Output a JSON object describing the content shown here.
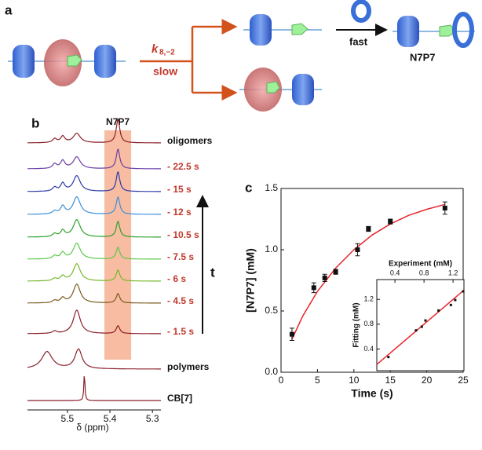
{
  "panel_a": {
    "label": "a",
    "rate_symbol": "k",
    "rate_subscript": "8,−2",
    "slow": "slow",
    "fast": "fast",
    "product": "N7P7"
  },
  "chart_data": [
    {
      "type": "spectra",
      "panel_label": "b",
      "highlight_label": "N7P7",
      "xlabel": "δ (ppm)",
      "xlim": [
        5.594,
        5.28
      ],
      "xticks": [
        5.5,
        5.4,
        5.3
      ],
      "traces": [
        {
          "name": "oligomers",
          "color": "#8b1f2a",
          "label_color": "#111111"
        },
        {
          "name": "- 22.5 s",
          "color": "#6a3fa6",
          "label_color": "#c0392b"
        },
        {
          "name": "- 15 s",
          "color": "#2b3aa8",
          "label_color": "#c0392b"
        },
        {
          "name": "- 12 s",
          "color": "#3b8fd8",
          "label_color": "#c0392b"
        },
        {
          "name": "- 10.5 s",
          "color": "#2ca02c",
          "label_color": "#c0392b"
        },
        {
          "name": "- 7.5 s",
          "color": "#5cc84a",
          "label_color": "#c0392b"
        },
        {
          "name": "- 6 s",
          "color": "#76b82a",
          "label_color": "#c0392b"
        },
        {
          "name": "- 4.5 s",
          "color": "#7a5a1e",
          "label_color": "#c0392b"
        },
        {
          "name": "- 1.5 s",
          "color": "#8b1f2a",
          "label_color": "#c0392b"
        },
        {
          "name": "polymers",
          "color": "#8b1f2a",
          "label_color": "#111111"
        },
        {
          "name": "CB[7]",
          "color": "#8b1f2a",
          "label_color": "#111111"
        }
      ],
      "arrow_label": "t"
    },
    {
      "type": "scatter",
      "panel_label": "c",
      "xlabel": "Time (s)",
      "ylabel": "[N7P7] (mM)",
      "xlim": [
        0,
        25
      ],
      "xticks": [
        0,
        5,
        10,
        15,
        20,
        25
      ],
      "ylim": [
        0,
        1.5
      ],
      "yticks": [
        {
          "value": 0,
          "label": "0.0"
        },
        0.5,
        {
          "value": 1,
          "label": "1.0"
        },
        1.5
      ],
      "series": [
        {
          "type": "scatter",
          "color": "#111111",
          "x": [
            1.5,
            4.5,
            6,
            7.5,
            10.5,
            12,
            15,
            22.5
          ],
          "values": [
            0.31,
            0.69,
            0.77,
            0.82,
            1.0,
            1.17,
            1.23,
            1.34
          ],
          "errors": [
            0.05,
            0.04,
            0.03,
            0.02,
            0.05,
            0.02,
            0.02,
            0.05
          ]
        },
        {
          "type": "line",
          "color": "#e8262c",
          "x": [
            1.5,
            3,
            5,
            7.5,
            10,
            12.5,
            15,
            17.5,
            20,
            22.5
          ],
          "values": [
            0.27,
            0.46,
            0.66,
            0.85,
            1.0,
            1.12,
            1.21,
            1.28,
            1.33,
            1.37
          ]
        }
      ]
    },
    {
      "type": "scatter",
      "xlabel": "Experiment (mM)",
      "ylabel": "Fitting (mM)",
      "xlim": [
        0.15,
        1.35
      ],
      "xticks": [
        0.4,
        0.8,
        1.2
      ],
      "ylim": [
        0.05,
        1.52
      ],
      "yticks": [
        0.4,
        0.8,
        1.2
      ],
      "series": [
        {
          "type": "scatter",
          "color": "#111111",
          "x": [
            0.31,
            0.69,
            0.77,
            0.82,
            1.0,
            1.17,
            1.23,
            1.34
          ],
          "values": [
            0.27,
            0.7,
            0.76,
            0.86,
            1.02,
            1.11,
            1.19,
            1.33
          ]
        },
        {
          "type": "line",
          "color": "#e8262c",
          "x": [
            0.15,
            1.35
          ],
          "values": [
            0.15,
            1.35
          ]
        }
      ]
    }
  ]
}
